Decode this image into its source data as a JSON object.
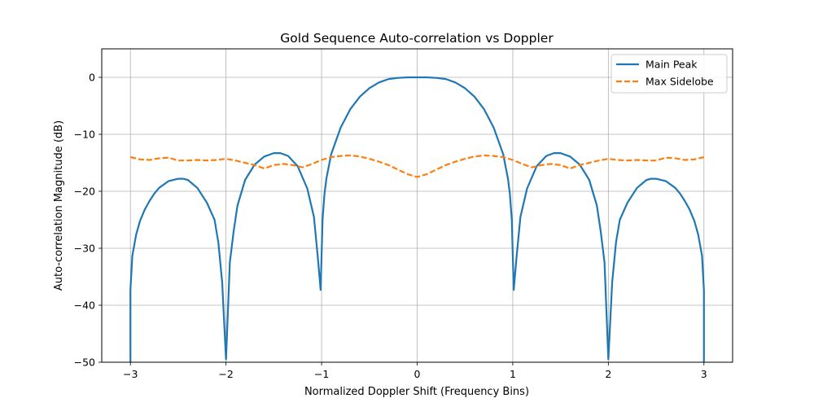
{
  "chart_data": {
    "type": "line",
    "title": "Gold Sequence Auto-correlation vs Doppler",
    "xlabel": "Normalized Doppler Shift (Frequency Bins)",
    "ylabel": "Auto-correlation Magnitude (dB)",
    "xlim": [
      -3.3,
      3.3
    ],
    "ylim": [
      -50,
      5
    ],
    "xticks": [
      -3,
      -2,
      -1,
      0,
      1,
      2,
      3
    ],
    "xtick_labels": [
      "−3",
      "−2",
      "−1",
      "0",
      "1",
      "2",
      "3"
    ],
    "yticks": [
      0,
      -10,
      -20,
      -30,
      -40,
      -50
    ],
    "ytick_labels": [
      "0",
      "−10",
      "−20",
      "−30",
      "−40",
      "−50"
    ],
    "grid": true,
    "legend_position": "top-right",
    "series": [
      {
        "name": "Main Peak",
        "color": "#1f77b4",
        "style": "solid",
        "x": [
          -3.0,
          -3.0,
          -2.98,
          -2.94,
          -2.9,
          -2.85,
          -2.8,
          -2.75,
          -2.7,
          -2.6,
          -2.5,
          -2.45,
          -2.4,
          -2.3,
          -2.2,
          -2.12,
          -2.08,
          -2.04,
          -2.0,
          -1.96,
          -1.92,
          -1.88,
          -1.8,
          -1.7,
          -1.6,
          -1.5,
          -1.43,
          -1.35,
          -1.25,
          -1.15,
          -1.08,
          -1.04,
          -1.01,
          -0.99,
          -0.97,
          -0.95,
          -0.9,
          -0.8,
          -0.7,
          -0.6,
          -0.5,
          -0.4,
          -0.3,
          -0.2,
          -0.1,
          0.0,
          0.1,
          0.2,
          0.3,
          0.4,
          0.5,
          0.6,
          0.7,
          0.8,
          0.9,
          0.95,
          0.97,
          0.99,
          1.01,
          1.04,
          1.08,
          1.15,
          1.25,
          1.35,
          1.43,
          1.5,
          1.6,
          1.7,
          1.8,
          1.88,
          1.92,
          1.96,
          2.0,
          2.04,
          2.08,
          2.12,
          2.2,
          2.3,
          2.4,
          2.45,
          2.5,
          2.6,
          2.7,
          2.75,
          2.8,
          2.85,
          2.9,
          2.94,
          2.98,
          3.0,
          3.0
        ],
        "y": [
          -50.0,
          -37.3,
          -31.3,
          -27.6,
          -25.2,
          -23.2,
          -21.7,
          -20.4,
          -19.4,
          -18.2,
          -17.8,
          -17.8,
          -18.0,
          -19.4,
          -22.0,
          -25.0,
          -29.0,
          -36.0,
          -49.5,
          -32.5,
          -27.0,
          -22.5,
          -18.0,
          -15.3,
          -13.9,
          -13.3,
          -13.3,
          -13.8,
          -15.6,
          -19.5,
          -24.5,
          -31.5,
          -37.3,
          -25.0,
          -20.5,
          -17.8,
          -13.5,
          -8.8,
          -5.6,
          -3.4,
          -1.9,
          -0.9,
          -0.3,
          -0.1,
          -0.0,
          0.0,
          -0.0,
          -0.1,
          -0.3,
          -0.9,
          -1.9,
          -3.4,
          -5.6,
          -8.8,
          -13.5,
          -17.8,
          -20.5,
          -25.0,
          -37.3,
          -31.5,
          -24.5,
          -19.5,
          -15.6,
          -13.8,
          -13.3,
          -13.3,
          -13.9,
          -15.3,
          -18.0,
          -22.5,
          -27.0,
          -32.5,
          -49.5,
          -36.0,
          -29.0,
          -25.0,
          -22.0,
          -19.4,
          -18.0,
          -17.8,
          -17.8,
          -18.2,
          -19.4,
          -20.4,
          -21.7,
          -23.2,
          -25.2,
          -27.6,
          -31.3,
          -37.3,
          -50.0
        ]
      },
      {
        "name": "Max Sidelobe",
        "color": "#ff7f0e",
        "style": "dashed",
        "x": [
          -3.0,
          -2.9,
          -2.8,
          -2.7,
          -2.6,
          -2.5,
          -2.4,
          -2.3,
          -2.2,
          -2.1,
          -2.0,
          -1.9,
          -1.8,
          -1.7,
          -1.6,
          -1.5,
          -1.4,
          -1.3,
          -1.2,
          -1.1,
          -1.0,
          -0.9,
          -0.8,
          -0.7,
          -0.6,
          -0.5,
          -0.4,
          -0.3,
          -0.2,
          -0.1,
          0.0,
          0.1,
          0.2,
          0.3,
          0.4,
          0.5,
          0.6,
          0.7,
          0.8,
          0.9,
          1.0,
          1.1,
          1.2,
          1.3,
          1.4,
          1.5,
          1.6,
          1.7,
          1.8,
          1.9,
          2.0,
          2.1,
          2.2,
          2.3,
          2.4,
          2.5,
          2.6,
          2.7,
          2.8,
          2.9,
          3.0
        ],
        "y": [
          -14.0,
          -14.4,
          -14.5,
          -14.2,
          -14.1,
          -14.6,
          -14.6,
          -14.5,
          -14.6,
          -14.5,
          -14.3,
          -14.6,
          -15.0,
          -15.4,
          -16.0,
          -15.4,
          -15.2,
          -15.4,
          -15.8,
          -15.2,
          -14.5,
          -14.0,
          -13.8,
          -13.7,
          -13.9,
          -14.3,
          -14.8,
          -15.4,
          -16.2,
          -17.0,
          -17.5,
          -17.0,
          -16.2,
          -15.4,
          -14.8,
          -14.3,
          -13.9,
          -13.7,
          -13.8,
          -14.0,
          -14.5,
          -15.2,
          -15.8,
          -15.4,
          -15.2,
          -15.4,
          -16.0,
          -15.4,
          -15.0,
          -14.6,
          -14.3,
          -14.5,
          -14.6,
          -14.5,
          -14.6,
          -14.6,
          -14.1,
          -14.2,
          -14.5,
          -14.4,
          -14.0
        ]
      }
    ]
  }
}
